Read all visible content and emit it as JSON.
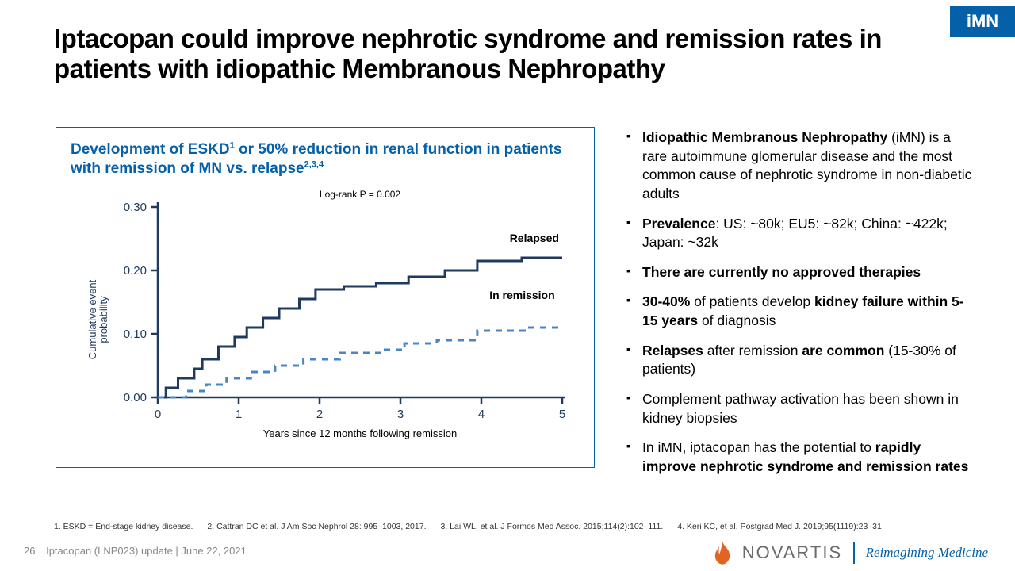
{
  "badge": {
    "text": "iMN",
    "bg": "#0460a9",
    "fg": "#ffffff"
  },
  "title": "Iptacopan could improve nephrotic syndrome and remission rates in patients with idiopathic Membranous Nephropathy",
  "chart": {
    "title_html": "Development of ESKD<sup>1</sup> or 50% reduction in renal function in patients with remission of MN vs. relapse<sup>2,3,4</sup>",
    "annotation": "Log-rank P = 0.002",
    "ylabel": "Cumulative event\nprobability",
    "xlabel": "Years since 12 months following remission",
    "xlim": [
      0,
      5
    ],
    "ylim": [
      0,
      0.3
    ],
    "xticks": [
      0,
      1,
      2,
      3,
      4,
      5
    ],
    "yticks": [
      0.0,
      0.1,
      0.2,
      0.3
    ],
    "series": [
      {
        "name": "Relapsed",
        "label": "Relapsed",
        "color": "#1f3a5f",
        "width": 3,
        "dash": "none",
        "points": [
          [
            0,
            0.0
          ],
          [
            0.1,
            0.0
          ],
          [
            0.1,
            0.015
          ],
          [
            0.25,
            0.015
          ],
          [
            0.25,
            0.03
          ],
          [
            0.45,
            0.03
          ],
          [
            0.45,
            0.045
          ],
          [
            0.55,
            0.045
          ],
          [
            0.55,
            0.06
          ],
          [
            0.75,
            0.06
          ],
          [
            0.75,
            0.08
          ],
          [
            0.95,
            0.08
          ],
          [
            0.95,
            0.095
          ],
          [
            1.1,
            0.095
          ],
          [
            1.1,
            0.11
          ],
          [
            1.3,
            0.11
          ],
          [
            1.3,
            0.125
          ],
          [
            1.5,
            0.125
          ],
          [
            1.5,
            0.14
          ],
          [
            1.75,
            0.14
          ],
          [
            1.75,
            0.155
          ],
          [
            1.95,
            0.155
          ],
          [
            1.95,
            0.17
          ],
          [
            2.3,
            0.17
          ],
          [
            2.3,
            0.175
          ],
          [
            2.7,
            0.175
          ],
          [
            2.7,
            0.18
          ],
          [
            3.1,
            0.18
          ],
          [
            3.1,
            0.19
          ],
          [
            3.55,
            0.19
          ],
          [
            3.55,
            0.2
          ],
          [
            3.95,
            0.2
          ],
          [
            3.95,
            0.215
          ],
          [
            4.5,
            0.215
          ],
          [
            4.5,
            0.22
          ],
          [
            5.0,
            0.22
          ]
        ]
      },
      {
        "name": "In remission",
        "label": "In remission",
        "color": "#4a86c5",
        "width": 3,
        "dash": "8,7",
        "points": [
          [
            0,
            0.0
          ],
          [
            0.35,
            0.0
          ],
          [
            0.35,
            0.01
          ],
          [
            0.6,
            0.01
          ],
          [
            0.6,
            0.02
          ],
          [
            0.85,
            0.02
          ],
          [
            0.85,
            0.03
          ],
          [
            1.15,
            0.03
          ],
          [
            1.15,
            0.04
          ],
          [
            1.45,
            0.04
          ],
          [
            1.45,
            0.05
          ],
          [
            1.8,
            0.05
          ],
          [
            1.8,
            0.06
          ],
          [
            2.25,
            0.06
          ],
          [
            2.25,
            0.07
          ],
          [
            2.75,
            0.07
          ],
          [
            2.75,
            0.075
          ],
          [
            3.05,
            0.075
          ],
          [
            3.05,
            0.085
          ],
          [
            3.45,
            0.085
          ],
          [
            3.45,
            0.09
          ],
          [
            3.95,
            0.09
          ],
          [
            3.95,
            0.105
          ],
          [
            4.55,
            0.105
          ],
          [
            4.55,
            0.11
          ],
          [
            5.0,
            0.11
          ]
        ]
      }
    ],
    "label_anchors": {
      "Relapsed": [
        4.35,
        0.245
      ],
      "In remission": [
        4.1,
        0.155
      ]
    },
    "axis_color": "#1f3a5f",
    "tick_fontsize": 15,
    "label_fontsize": 13,
    "annotation_fontsize": 12
  },
  "bullets": [
    "<b>Idiopathic Membranous Nephropathy</b> (iMN) is a rare autoimmune glomerular disease and the most common cause of nephrotic syndrome in non-diabetic adults",
    "<b>Prevalence</b>: US: ~80k; EU5: ~82k; China:&nbsp;~422k; Japan: ~32k",
    "<b>There are currently no approved therapies</b>",
    "<b>30-40%</b> of patients develop <b>kidney failure within 5-15 years</b> of diagnosis",
    "<b>Relapses</b> after remission <b>are common</b> (15-30% of patients)",
    "Complement pathway activation has been shown in kidney biopsies",
    "In iMN, iptacopan has the potential to <b>rapidly improve nephrotic syndrome and remission rates</b>"
  ],
  "footnotes": [
    "1. ESKD = End-stage kidney disease.",
    "2. Cattran DC et al. J Am Soc Nephrol 28: 995–1003, 2017.",
    "3. Lai WL, et al. J Formos Med Assoc. 2015;114(2):102–111.",
    "4. Keri KC, et al. Postgrad Med J. 2019;95(1119):23–31"
  ],
  "page": {
    "number": "26",
    "caption": "Iptacopan (LNP023) update | June 22, 2021"
  },
  "brand": {
    "name": "NOVARTIS",
    "tag": "Reimagining Medicine",
    "flame_color": "#e06422",
    "name_color": "#6b6b6b",
    "tag_color": "#0460a9"
  }
}
